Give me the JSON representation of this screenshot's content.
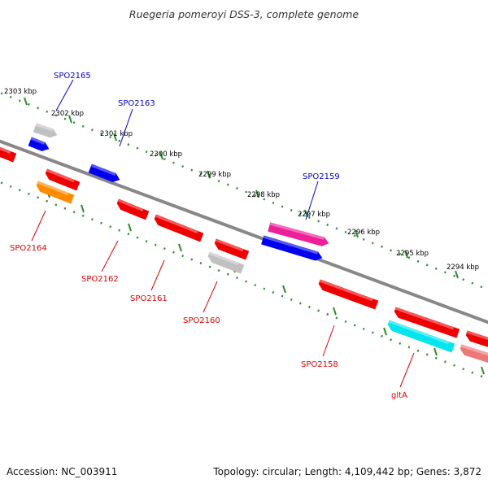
{
  "title": "Ruegeria pomeroyi DSS-3, complete genome",
  "footer": {
    "accession": "Accession: NC_003911",
    "topology": "Topology: circular; Length: 4,109,442 bp; Genes: 3,872"
  },
  "colors": {
    "backbone": "#888888",
    "tick_dots": "#2e8b2e",
    "forward_label": "#0000cc",
    "reverse_label": "#dd0000"
  },
  "ticks": [
    "2303 kbp",
    "2302 kbp",
    "2301 kbp",
    "2300 kbp",
    "2299 kbp",
    "2298 kbp",
    "2297 kbp",
    "2296 kbp",
    "2295 kbp",
    "2294 kbp"
  ],
  "genes": [
    {
      "label": "",
      "strand": "+",
      "color": "#c0c0c0"
    },
    {
      "label": "SPO2165",
      "strand": "+",
      "color": "#0000ee"
    },
    {
      "label": "SPO2163",
      "strand": "+",
      "color": "#0000ee"
    },
    {
      "label": "SPO2159",
      "strand": "+",
      "color": "#ee1f99"
    },
    {
      "label": "",
      "strand": "+",
      "color": "#0000ee"
    },
    {
      "label": "",
      "strand": "-",
      "color": "#ee0000"
    },
    {
      "label": "",
      "strand": "-",
      "color": "#ee0000"
    },
    {
      "label": "SPO2164",
      "strand": "-",
      "color": "#ff8c00"
    },
    {
      "label": "SPO2162",
      "strand": "-",
      "color": "#ee0000"
    },
    {
      "label": "SPO2161",
      "strand": "-",
      "color": "#ee0000"
    },
    {
      "label": "",
      "strand": "-",
      "color": "#ee0000"
    },
    {
      "label": "SPO2160",
      "strand": "-",
      "color": "#c0c0c0"
    },
    {
      "label": "SPO2158",
      "strand": "-",
      "color": "#ee0000"
    },
    {
      "label": "",
      "strand": "-",
      "color": "#ee0000"
    },
    {
      "label": "gltA",
      "strand": "-",
      "color": "#00e5ee"
    },
    {
      "label": "",
      "strand": "-",
      "color": "#ee0000"
    },
    {
      "label": "",
      "strand": "-",
      "color": "#ee7777"
    }
  ]
}
